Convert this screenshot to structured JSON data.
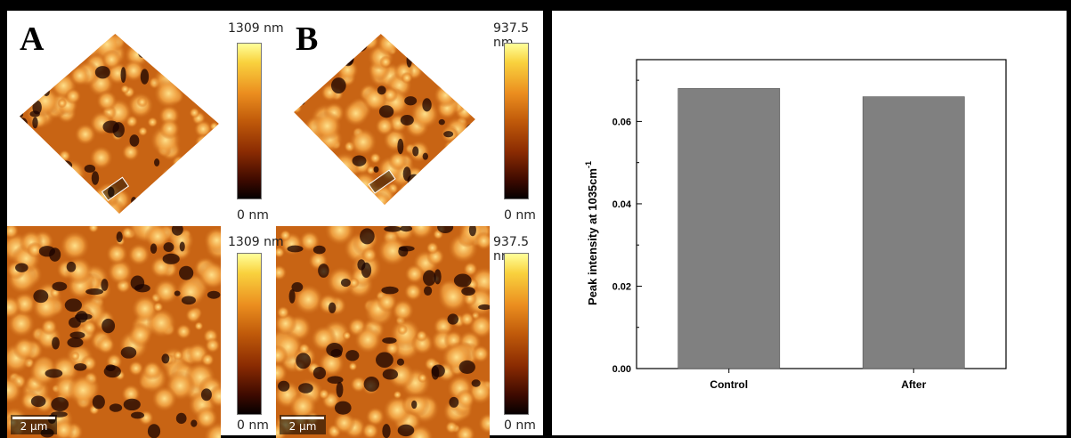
{
  "panels": {
    "a": {
      "letter": "A",
      "colorbar_max": "1309 nm",
      "colorbar_min": "0 nm",
      "scale_label": "2 µm"
    },
    "b": {
      "letter": "B",
      "colorbar_max": "937.5 nm",
      "colorbar_min": "0 nm",
      "scale_label": "2 µm"
    }
  },
  "colors": {
    "bar_fill": "#808080",
    "afm_dark": "#1a0300",
    "afm_mid": "#c86414",
    "afm_light": "#ffe08a"
  },
  "chart_data": {
    "type": "bar",
    "categories": [
      "Control",
      "After"
    ],
    "values": [
      0.068,
      0.066
    ],
    "ylabel_main": "Peak intensity at 1035cm",
    "ylabel_sup": "-1",
    "ylim": [
      0,
      0.075
    ],
    "yticks": [
      "0.00",
      "0.02",
      "0.04",
      "0.06"
    ],
    "grid": false
  }
}
